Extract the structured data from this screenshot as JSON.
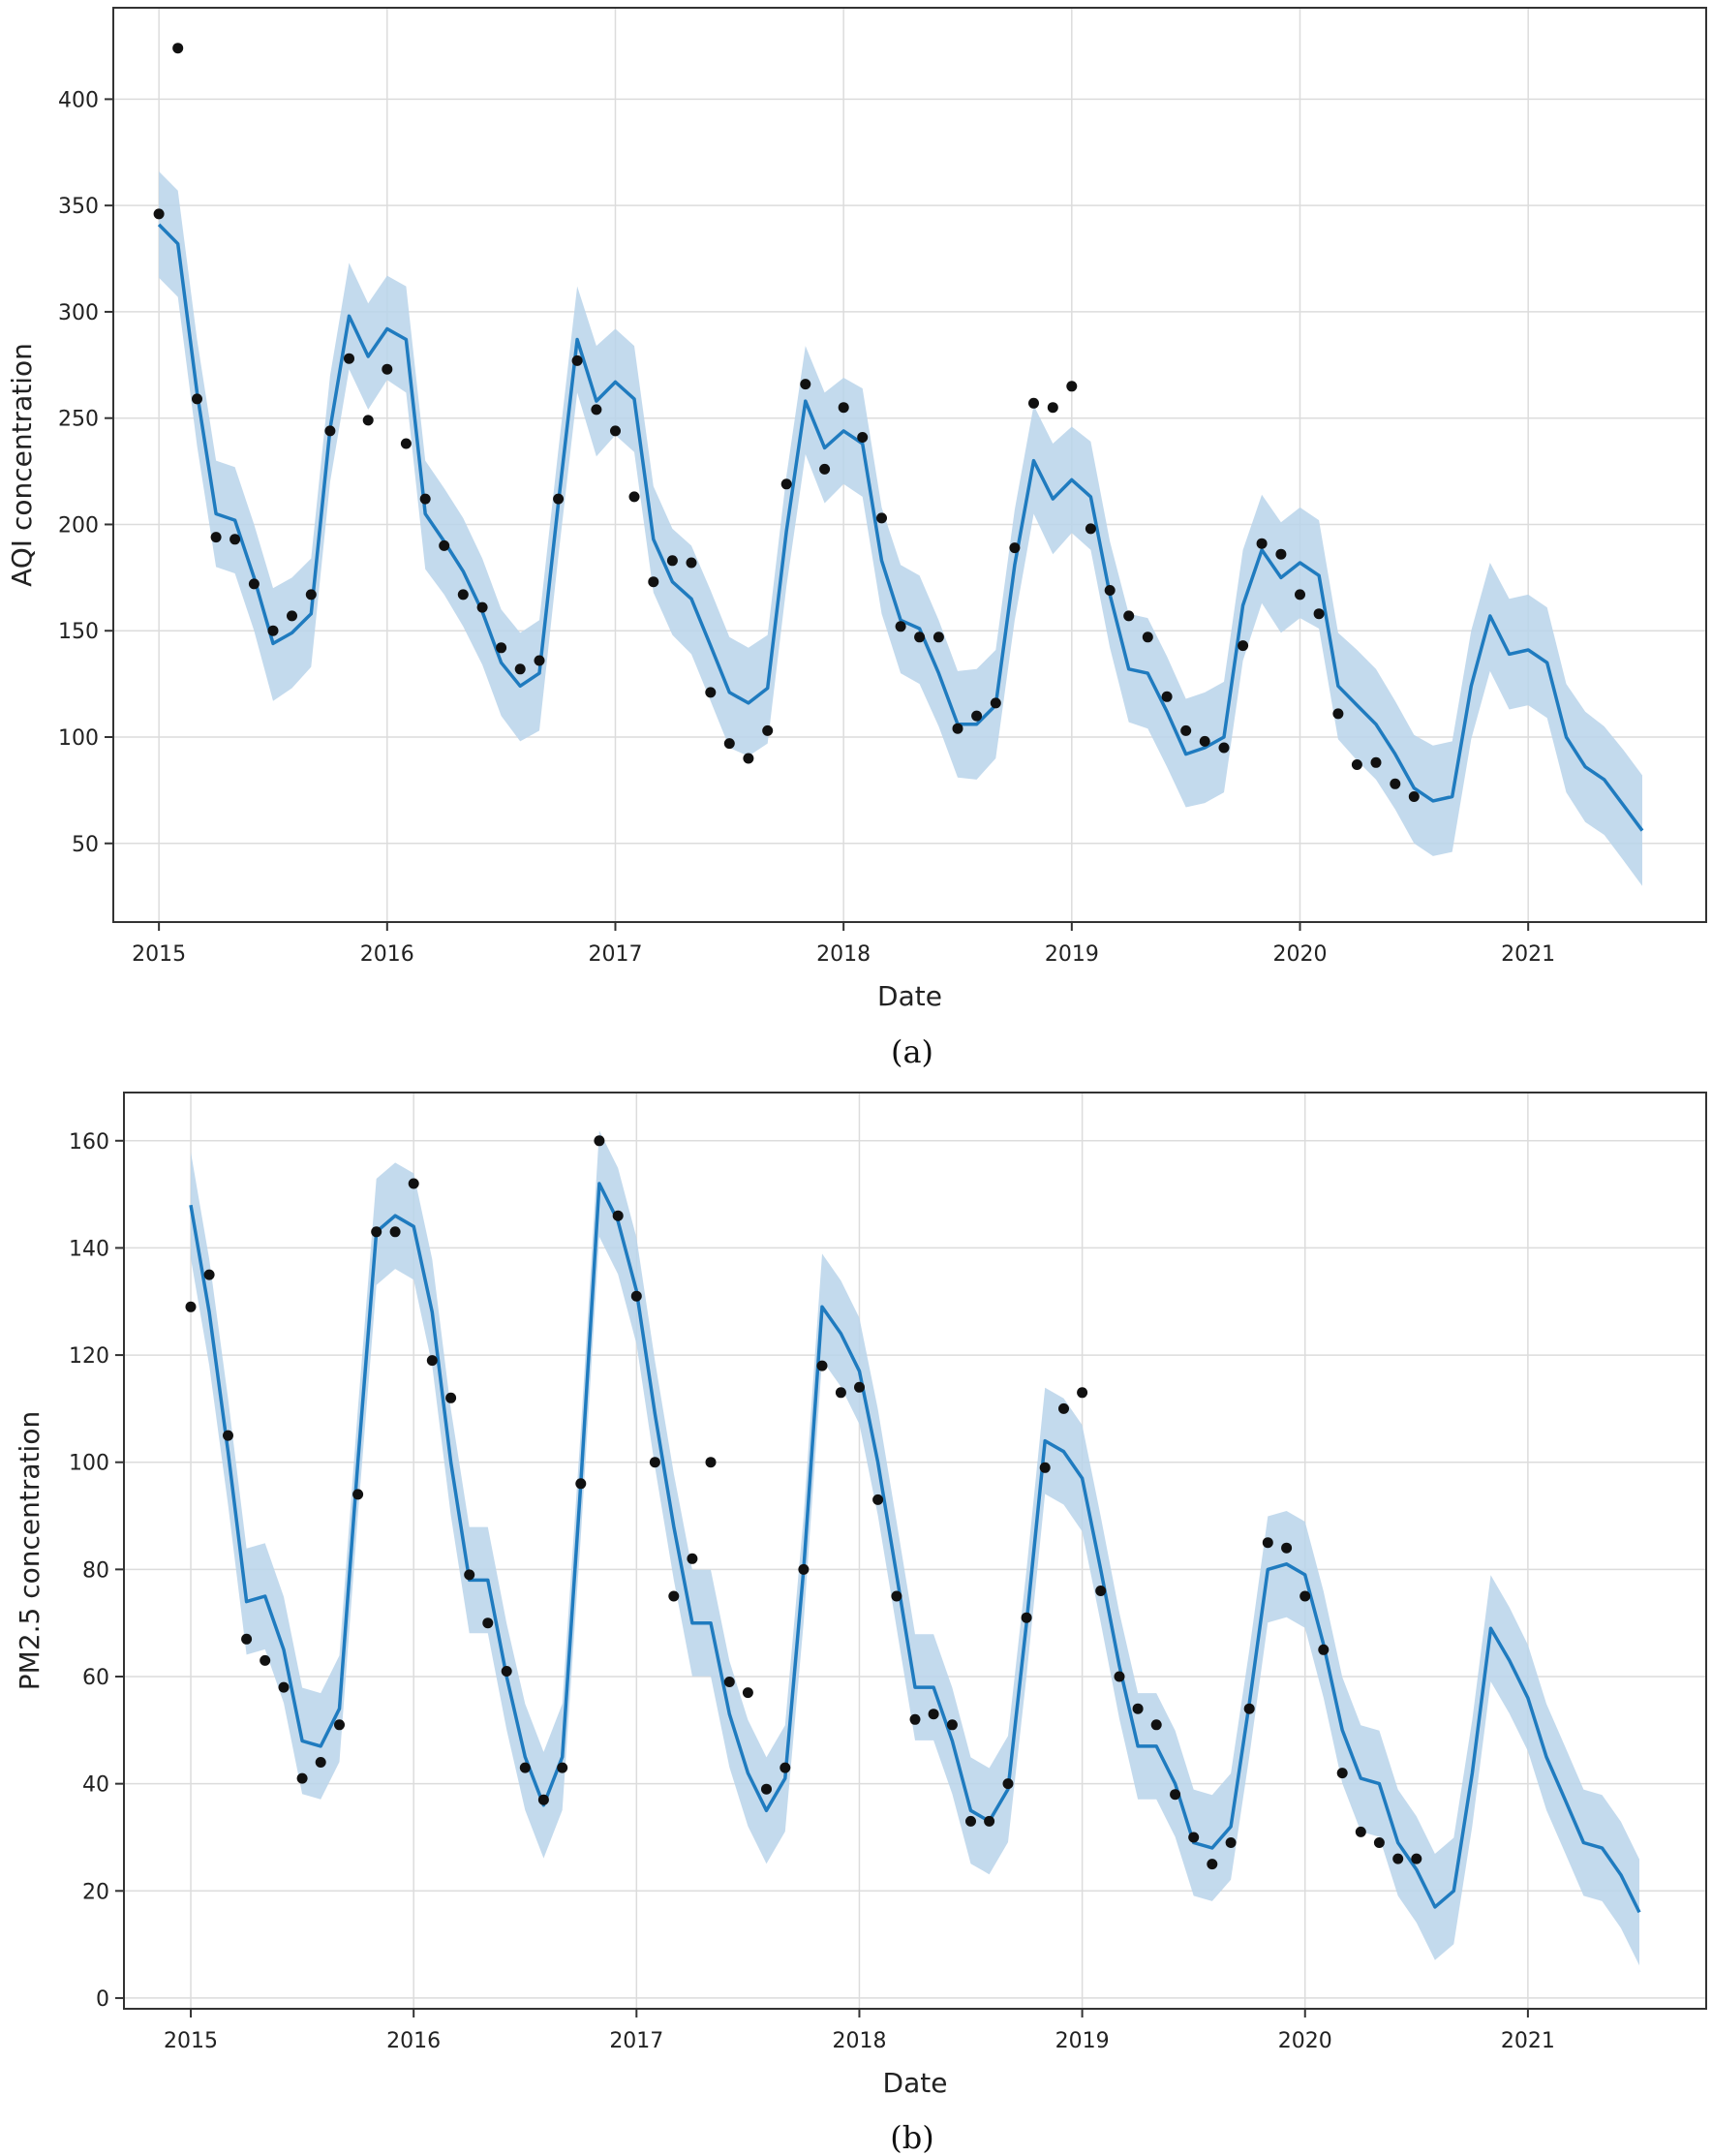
{
  "chart_data": [
    {
      "type": "line",
      "caption": "(a)",
      "xlabel": "Date",
      "ylabel": "AQI concentration",
      "xlim": [
        2014.8,
        2021.78
      ],
      "ylim": [
        13,
        443
      ],
      "xticks": [
        2015,
        2016,
        2017,
        2018,
        2019,
        2020,
        2021
      ],
      "yticks": [
        50,
        100,
        150,
        200,
        250,
        300,
        350,
        400
      ],
      "grid": true,
      "series": [
        {
          "name": "forecast",
          "x": [
            2015.0,
            2015.083,
            2015.167,
            2015.25,
            2015.333,
            2015.417,
            2015.5,
            2015.583,
            2015.667,
            2015.75,
            2015.833,
            2015.917,
            2016.0,
            2016.083,
            2016.167,
            2016.25,
            2016.333,
            2016.417,
            2016.5,
            2016.583,
            2016.667,
            2016.75,
            2016.833,
            2016.917,
            2017.0,
            2017.083,
            2017.167,
            2017.25,
            2017.333,
            2017.417,
            2017.5,
            2017.583,
            2017.667,
            2017.75,
            2017.833,
            2017.917,
            2018.0,
            2018.083,
            2018.167,
            2018.25,
            2018.333,
            2018.417,
            2018.5,
            2018.583,
            2018.667,
            2018.75,
            2018.833,
            2018.917,
            2019.0,
            2019.083,
            2019.167,
            2019.25,
            2019.333,
            2019.417,
            2019.5,
            2019.583,
            2019.667,
            2019.75,
            2019.833,
            2019.917,
            2020.0,
            2020.083,
            2020.167,
            2020.25,
            2020.333,
            2020.417,
            2020.5,
            2020.583,
            2020.667,
            2020.75,
            2020.833,
            2020.917,
            2021.0,
            2021.083,
            2021.167,
            2021.25,
            2021.333,
            2021.417,
            2021.5
          ],
          "yhat": [
            341,
            332,
            262,
            205,
            202,
            175,
            144,
            149,
            158,
            245,
            298,
            279,
            292,
            287,
            205,
            192,
            178,
            159,
            135,
            124,
            130,
            210,
            287,
            258,
            267,
            259,
            193,
            173,
            165,
            143,
            121,
            116,
            123,
            197,
            258,
            236,
            244,
            238,
            183,
            155,
            151,
            130,
            106,
            106,
            115,
            181,
            230,
            212,
            221,
            213,
            167,
            132,
            130,
            112,
            92,
            95,
            100,
            162,
            188,
            175,
            182,
            176,
            124,
            115,
            106,
            92,
            76,
            70,
            72,
            124,
            157,
            139,
            141,
            135,
            100,
            86,
            80,
            68,
            56
          ],
          "lower": [
            316,
            307,
            237,
            180,
            177,
            150,
            117,
            123,
            133,
            220,
            273,
            254,
            268,
            262,
            179,
            167,
            152,
            134,
            110,
            98,
            103,
            185,
            262,
            232,
            242,
            234,
            168,
            148,
            139,
            117,
            95,
            91,
            97,
            171,
            233,
            210,
            219,
            213,
            158,
            130,
            125,
            105,
            81,
            80,
            90,
            155,
            205,
            186,
            196,
            188,
            142,
            107,
            104,
            86,
            67,
            69,
            74,
            136,
            163,
            149,
            156,
            151,
            99,
            89,
            80,
            66,
            50,
            44,
            46,
            99,
            131,
            113,
            115,
            109,
            74,
            60,
            54,
            42,
            30
          ],
          "upper": [
            366,
            357,
            287,
            230,
            227,
            200,
            170,
            175,
            184,
            270,
            323,
            304,
            317,
            312,
            230,
            217,
            203,
            184,
            160,
            149,
            155,
            235,
            312,
            284,
            292,
            284,
            218,
            198,
            190,
            169,
            147,
            142,
            148,
            223,
            284,
            262,
            269,
            264,
            208,
            181,
            176,
            155,
            131,
            132,
            141,
            207,
            256,
            238,
            246,
            239,
            192,
            158,
            156,
            138,
            118,
            121,
            126,
            188,
            214,
            201,
            208,
            202,
            149,
            141,
            132,
            117,
            101,
            96,
            98,
            150,
            182,
            165,
            167,
            161,
            125,
            112,
            105,
            94,
            82
          ]
        },
        {
          "name": "observed",
          "x": [
            2015.0,
            2015.083,
            2015.167,
            2015.25,
            2015.333,
            2015.417,
            2015.5,
            2015.583,
            2015.667,
            2015.75,
            2015.833,
            2015.917,
            2016.0,
            2016.083,
            2016.167,
            2016.25,
            2016.333,
            2016.417,
            2016.5,
            2016.583,
            2016.667,
            2016.75,
            2016.833,
            2016.917,
            2017.0,
            2017.083,
            2017.167,
            2017.25,
            2017.333,
            2017.417,
            2017.5,
            2017.583,
            2017.667,
            2017.75,
            2017.833,
            2017.917,
            2018.0,
            2018.083,
            2018.167,
            2018.25,
            2018.333,
            2018.417,
            2018.5,
            2018.583,
            2018.667,
            2018.75,
            2018.833,
            2018.917,
            2019.0,
            2019.083,
            2019.167,
            2019.25,
            2019.333,
            2019.417,
            2019.5,
            2019.583,
            2019.667,
            2019.75,
            2019.833,
            2019.917,
            2020.0,
            2020.083,
            2020.167,
            2020.25,
            2020.333,
            2020.417,
            2020.5
          ],
          "y": [
            346,
            424,
            259,
            194,
            193,
            172,
            150,
            157,
            167,
            244,
            278,
            249,
            273,
            238,
            212,
            190,
            167,
            161,
            142,
            132,
            136,
            212,
            277,
            254,
            244,
            213,
            173,
            183,
            182,
            121,
            97,
            90,
            103,
            219,
            266,
            226,
            255,
            241,
            203,
            152,
            147,
            147,
            104,
            110,
            116,
            189,
            257,
            255,
            265,
            198,
            169,
            157,
            147,
            119,
            103,
            98,
            95,
            143,
            191,
            186,
            167,
            158,
            111,
            87,
            88,
            78,
            72
          ]
        }
      ]
    },
    {
      "type": "line",
      "caption": "(b)",
      "xlabel": "Date",
      "ylabel": "PM2.5 concentration",
      "xlim": [
        2014.7,
        2021.8
      ],
      "ylim": [
        -2,
        169
      ],
      "xticks": [
        2015,
        2016,
        2017,
        2018,
        2019,
        2020,
        2021
      ],
      "yticks": [
        0,
        20,
        40,
        60,
        80,
        100,
        120,
        140,
        160
      ],
      "grid": true,
      "series": [
        {
          "name": "forecast",
          "x": [
            2015.0,
            2015.083,
            2015.167,
            2015.25,
            2015.333,
            2015.417,
            2015.5,
            2015.583,
            2015.667,
            2015.75,
            2015.833,
            2015.917,
            2016.0,
            2016.083,
            2016.167,
            2016.25,
            2016.333,
            2016.417,
            2016.5,
            2016.583,
            2016.667,
            2016.75,
            2016.833,
            2016.917,
            2017.0,
            2017.083,
            2017.167,
            2017.25,
            2017.333,
            2017.417,
            2017.5,
            2017.583,
            2017.667,
            2017.75,
            2017.833,
            2017.917,
            2018.0,
            2018.083,
            2018.167,
            2018.25,
            2018.333,
            2018.417,
            2018.5,
            2018.583,
            2018.667,
            2018.75,
            2018.833,
            2018.917,
            2019.0,
            2019.083,
            2019.167,
            2019.25,
            2019.333,
            2019.417,
            2019.5,
            2019.583,
            2019.667,
            2019.75,
            2019.833,
            2019.917,
            2020.0,
            2020.083,
            2020.167,
            2020.25,
            2020.333,
            2020.417,
            2020.5,
            2020.583,
            2020.667,
            2020.75,
            2020.833,
            2020.917,
            2021.0,
            2021.083,
            2021.167,
            2021.25,
            2021.333,
            2021.417,
            2021.5
          ],
          "yhat": [
            148,
            128,
            102,
            74,
            75,
            65,
            48,
            47,
            54,
            100,
            143,
            146,
            144,
            128,
            100,
            78,
            78,
            60,
            45,
            36,
            45,
            96,
            152,
            145,
            132,
            109,
            88,
            70,
            70,
            53,
            42,
            35,
            41,
            80,
            129,
            124,
            117,
            100,
            79,
            58,
            58,
            48,
            35,
            33,
            39,
            70,
            104,
            102,
            97,
            80,
            62,
            47,
            47,
            40,
            29,
            28,
            32,
            55,
            80,
            81,
            79,
            66,
            50,
            41,
            40,
            29,
            24,
            17,
            20,
            42,
            69,
            63,
            56,
            45,
            37,
            29,
            28,
            23,
            16
          ]
        },
        {
          "name": "observed",
          "x": [
            2015.0,
            2015.083,
            2015.167,
            2015.25,
            2015.333,
            2015.417,
            2015.5,
            2015.583,
            2015.667,
            2015.75,
            2015.833,
            2015.917,
            2016.0,
            2016.083,
            2016.167,
            2016.25,
            2016.333,
            2016.417,
            2016.5,
            2016.583,
            2016.667,
            2016.75,
            2016.833,
            2016.917,
            2017.0,
            2017.083,
            2017.167,
            2017.25,
            2017.333,
            2017.417,
            2017.5,
            2017.583,
            2017.667,
            2017.75,
            2017.833,
            2017.917,
            2018.0,
            2018.083,
            2018.167,
            2018.25,
            2018.333,
            2018.417,
            2018.5,
            2018.583,
            2018.667,
            2018.75,
            2018.833,
            2018.917,
            2019.0,
            2019.083,
            2019.167,
            2019.25,
            2019.333,
            2019.417,
            2019.5,
            2019.583,
            2019.667,
            2019.75,
            2019.833,
            2019.917,
            2020.0,
            2020.083,
            2020.167,
            2020.25,
            2020.333,
            2020.417,
            2020.5
          ],
          "y": [
            129,
            135,
            105,
            67,
            63,
            58,
            41,
            44,
            51,
            94,
            143,
            143,
            152,
            119,
            112,
            79,
            70,
            61,
            43,
            37,
            43,
            96,
            160,
            146,
            131,
            100,
            75,
            82,
            100,
            59,
            57,
            39,
            43,
            80,
            118,
            113,
            114,
            93,
            75,
            52,
            53,
            51,
            33,
            33,
            40,
            71,
            99,
            110,
            113,
            76,
            60,
            54,
            51,
            38,
            30,
            25,
            29,
            54,
            85,
            84,
            75,
            65,
            42,
            31,
            29,
            26,
            26
          ]
        }
      ]
    }
  ]
}
